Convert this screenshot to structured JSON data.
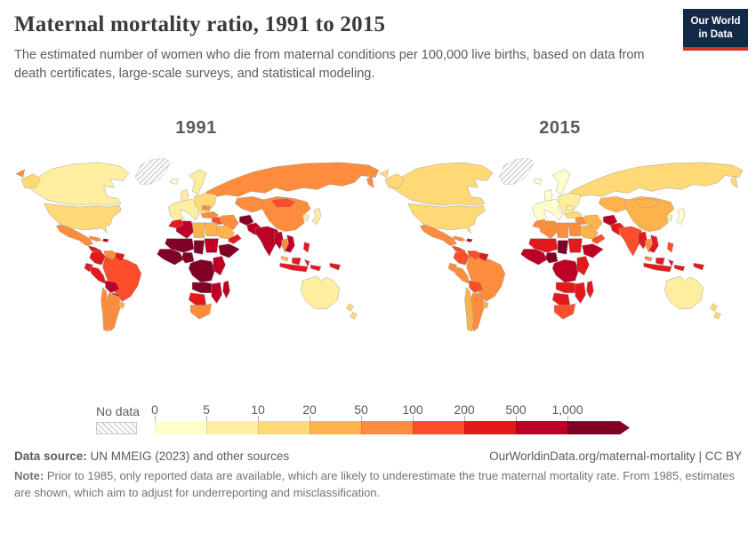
{
  "header": {
    "title": "Maternal mortality ratio, 1991 to 2015",
    "subtitle": "The estimated number of women who die from maternal conditions per 100,000 live births, based on data from death certificates, large-scale surveys, and statistical modeling.",
    "logo": {
      "line1": "Our World",
      "line2": "in Data"
    }
  },
  "maps": {
    "left_year": "1991",
    "right_year": "2015"
  },
  "legend": {
    "no_data_label": "No data",
    "ticks": [
      "0",
      "5",
      "10",
      "20",
      "50",
      "100",
      "200",
      "500",
      "1,000"
    ],
    "colors": [
      "#ffffcc",
      "#ffeda0",
      "#fed976",
      "#feb24c",
      "#fd8d3c",
      "#fc4e2a",
      "#e31a1c",
      "#bd0026",
      "#800026"
    ]
  },
  "footer": {
    "source_label": "Data source:",
    "source_text": " UN MMEIG (2023) and other sources",
    "link_text": "OurWorldinData.org/maternal-mortality | CC BY",
    "note_label": "Note:",
    "note_text": " Prior to 1985, only reported data are available, which are likely to underestimate the true maternal mortality rate. From 1985, estimates are shown, which aim to adjust for underreporting and misclassification."
  },
  "chart_data": {
    "type": "choropleth_map",
    "title": "Maternal mortality ratio, 1991 to 2015",
    "unit": "maternal deaths per 100,000 live births",
    "years": [
      "1991",
      "2015"
    ],
    "legend_bins": [
      0,
      5,
      10,
      20,
      50,
      100,
      200,
      500,
      1000
    ],
    "legend_colors": [
      "#ffffcc",
      "#ffeda0",
      "#fed976",
      "#feb24c",
      "#fd8d3c",
      "#fc4e2a",
      "#e31a1c",
      "#bd0026",
      "#800026"
    ],
    "no_data_pattern": "hatched",
    "regions": {
      "greenland": {
        "1991": "nodata",
        "2015": "nodata"
      },
      "canada": {
        "1991": "#ffeda0",
        "2015": "#fed976"
      },
      "alaska": {
        "1991": "#fed976",
        "2015": "#fed976"
      },
      "usa": {
        "1991": "#fed976",
        "2015": "#fed976"
      },
      "mexico": {
        "1991": "#fd8d3c",
        "2015": "#fd8d3c"
      },
      "central_america": {
        "1991": "#e31a1c",
        "2015": "#fc4e2a"
      },
      "cuba": {
        "1991": "#fd8d3c",
        "2015": "#fd8d3c"
      },
      "hispaniola": {
        "1991": "#bd0026",
        "2015": "#bd0026"
      },
      "colombia": {
        "1991": "#e31a1c",
        "2015": "#fc4e2a"
      },
      "venezuela": {
        "1991": "#fd8d3c",
        "2015": "#fc4e2a"
      },
      "guyanas": {
        "1991": "#e31a1c",
        "2015": "#e31a1c"
      },
      "ecuador": {
        "1991": "#e31a1c",
        "2015": "#fd8d3c"
      },
      "peru": {
        "1991": "#e31a1c",
        "2015": "#fd8d3c"
      },
      "brazil": {
        "1991": "#fc4e2a",
        "2015": "#fd8d3c"
      },
      "bolivia": {
        "1991": "#bd0026",
        "2015": "#fc4e2a"
      },
      "paraguay": {
        "1991": "#e31a1c",
        "2015": "#fd8d3c"
      },
      "chile": {
        "1991": "#fd8d3c",
        "2015": "#feb24c"
      },
      "argentina": {
        "1991": "#fd8d3c",
        "2015": "#fd8d3c"
      },
      "uruguay": {
        "1991": "#feb24c",
        "2015": "#feb24c"
      },
      "iceland": {
        "1991": "#ffffcc",
        "2015": "#ffffcc"
      },
      "uk": {
        "1991": "#ffeda0",
        "2015": "#ffffcc"
      },
      "scandinavia": {
        "1991": "#ffeda0",
        "2015": "#ffffcc"
      },
      "west_europe": {
        "1991": "#ffeda0",
        "2015": "#ffffcc"
      },
      "east_europe": {
        "1991": "#fed976",
        "2015": "#ffeda0"
      },
      "romania": {
        "1991": "#fd8d3c",
        "2015": "#ffeda0"
      },
      "russia": {
        "1991": "#fd8d3c",
        "2015": "#fed976"
      },
      "central_asia": {
        "1991": "#fd8d3c",
        "2015": "#feb24c"
      },
      "turkey": {
        "1991": "#fd8d3c",
        "2015": "#fed976"
      },
      "iraq": {
        "1991": "#fc4e2a",
        "2015": "#fd8d3c"
      },
      "iran": {
        "1991": "#fd8d3c",
        "2015": "#feb24c"
      },
      "saudi": {
        "1991": "#feb24c",
        "2015": "#feb24c"
      },
      "yemen_oman": {
        "1991": "#e31a1c",
        "2015": "#fc4e2a"
      },
      "afghanistan": {
        "1991": "#800026",
        "2015": "#bd0026"
      },
      "pakistan": {
        "1991": "#bd0026",
        "2015": "#e31a1c"
      },
      "india": {
        "1991": "#bd0026",
        "2015": "#fc4e2a"
      },
      "china": {
        "1991": "#fd8d3c",
        "2015": "#feb24c"
      },
      "mongolia": {
        "1991": "#fc4e2a",
        "2015": "#feb24c"
      },
      "korea": {
        "1991": "#ffeda0",
        "2015": "#ffeda0"
      },
      "japan": {
        "1991": "#ffeda0",
        "2015": "#ffffcc"
      },
      "myanmar": {
        "1991": "#bd0026",
        "2015": "#e31a1c"
      },
      "thailand": {
        "1991": "#fd8d3c",
        "2015": "#fd8d3c"
      },
      "indochina": {
        "1991": "#bd0026",
        "2015": "#e31a1c"
      },
      "malaysia": {
        "1991": "#feb24c",
        "2015": "#fd8d3c"
      },
      "indonesia": {
        "1991": "#e31a1c",
        "2015": "#e31a1c"
      },
      "philippines": {
        "1991": "#e31a1c",
        "2015": "#fc4e2a"
      },
      "png": {
        "1991": "#e31a1c",
        "2015": "#e31a1c"
      },
      "australia": {
        "1991": "#ffeda0",
        "2015": "#ffeda0"
      },
      "new_zealand": {
        "1991": "#fed976",
        "2015": "#fed976"
      },
      "morocco": {
        "1991": "#e31a1c",
        "2015": "#fd8d3c"
      },
      "algeria": {
        "1991": "#bd0026",
        "2015": "#fd8d3c"
      },
      "libya": {
        "1991": "#feb24c",
        "2015": "#fd8d3c"
      },
      "egypt": {
        "1991": "#feb24c",
        "2015": "#fd8d3c"
      },
      "sahel": {
        "1991": "#800026",
        "2015": "#e31a1c"
      },
      "chad": {
        "1991": "#800026",
        "2015": "#800026"
      },
      "sudan": {
        "1991": "#bd0026",
        "2015": "#e31a1c"
      },
      "west_africa": {
        "1991": "#800026",
        "2015": "#bd0026"
      },
      "nigeria": {
        "1991": "#800026",
        "2015": "#800026"
      },
      "horn": {
        "1991": "#800026",
        "2015": "#bd0026"
      },
      "central_africa": {
        "1991": "#800026",
        "2015": "#bd0026"
      },
      "east_africa": {
        "1991": "#bd0026",
        "2015": "#e31a1c"
      },
      "angola_zambia": {
        "1991": "#800026",
        "2015": "#e31a1c"
      },
      "mozambique_zimbabwe": {
        "1991": "#bd0026",
        "2015": "#e31a1c"
      },
      "namibia_botswana": {
        "1991": "#e31a1c",
        "2015": "#e31a1c"
      },
      "south_africa": {
        "1991": "#fd8d3c",
        "2015": "#fc4e2a"
      },
      "madagascar": {
        "1991": "#bd0026",
        "2015": "#e31a1c"
      }
    }
  }
}
